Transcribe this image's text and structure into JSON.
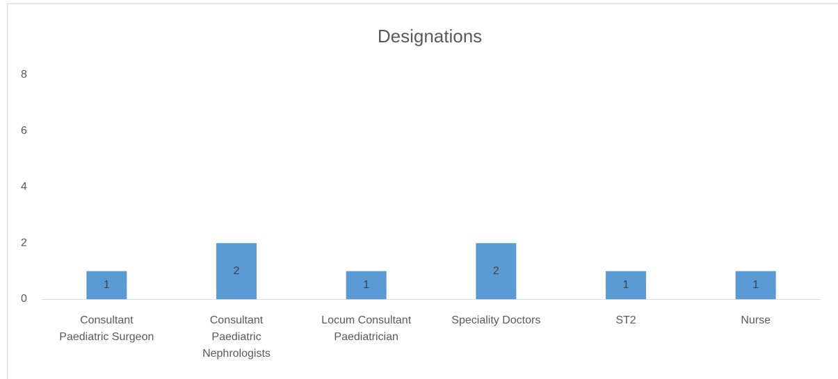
{
  "chart_data": {
    "type": "bar",
    "title": "Designations",
    "categories": [
      "Consultant Paediatric Surgeon",
      "Consultant Paediatric Nephrologists",
      "Locum Consultant Paediatrician",
      "Speciality Doctors",
      "ST2",
      "Nurse"
    ],
    "values": [
      1,
      2,
      1,
      2,
      1,
      1
    ],
    "color": "#5b9bd5",
    "ylim": [
      0,
      8
    ],
    "yticks": [
      0,
      2,
      4,
      6,
      8
    ],
    "grid": false,
    "data_labels": true
  }
}
